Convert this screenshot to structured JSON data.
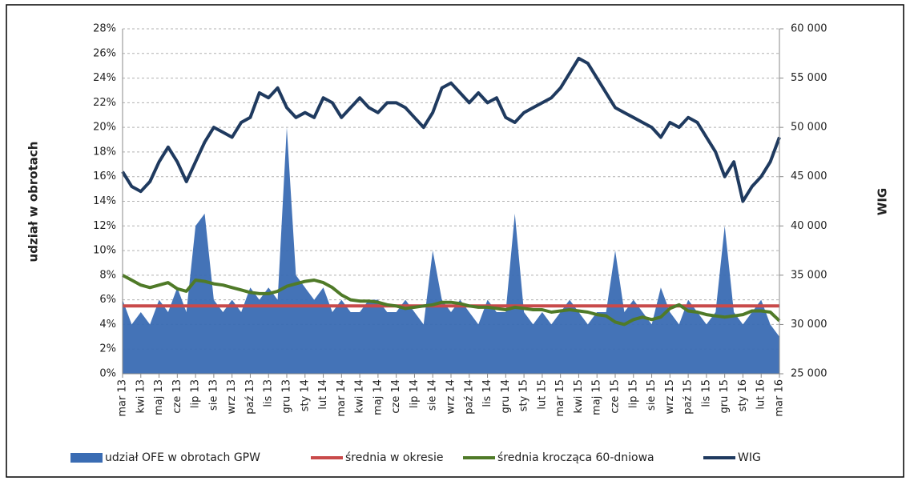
{
  "chart_data": {
    "type": "line",
    "ylabel": "udział w obrotach",
    "y2label": "WIG",
    "categories": [
      "mar 13",
      null,
      "kwi 13",
      null,
      "maj 13",
      null,
      "cze 13",
      null,
      "lip 13",
      null,
      "sie 13",
      null,
      "wrz 13",
      null,
      "paź 13",
      null,
      "lis 13",
      null,
      "gru 13",
      null,
      "sty 14",
      null,
      "lut 14",
      null,
      "mar 14",
      null,
      "kwi 14",
      null,
      "maj 14",
      null,
      "cze 14",
      null,
      "lip 14",
      null,
      "sie 14",
      null,
      "wrz 14",
      null,
      "paź 14",
      null,
      "lis 14",
      null,
      "gru 14",
      null,
      "sty 15",
      null,
      "lut 15",
      null,
      "mar 15",
      null,
      "kwi 15",
      null,
      "maj 15",
      null,
      "cze 15",
      null,
      "lip 15",
      null,
      "sie 15",
      null,
      "wrz 15",
      null,
      "paź 15",
      null,
      "lis 15",
      null,
      "gru 15",
      null,
      "sty 16",
      null,
      "lut 16",
      null,
      "mar 16"
    ],
    "series": [
      {
        "name": "udział OFE w obrotach GPW",
        "type": "area",
        "color": "#3a6cb3",
        "values": [
          6,
          4,
          5,
          4,
          6,
          5,
          7,
          5,
          12,
          13,
          6,
          5,
          6,
          5,
          7,
          6,
          7,
          6,
          20,
          8,
          7,
          6,
          7,
          5,
          6,
          5,
          5,
          6,
          6,
          5,
          5,
          6,
          5,
          4,
          10,
          6,
          5,
          6,
          5,
          4,
          6,
          5,
          5,
          13,
          5,
          4,
          5,
          4,
          5,
          6,
          5,
          4,
          5,
          5,
          10,
          5,
          6,
          5,
          4,
          7,
          5,
          4,
          6,
          5,
          4,
          5,
          12,
          5,
          4,
          5,
          6,
          4,
          3
        ]
      },
      {
        "name": "średnia w okresie",
        "type": "line",
        "color": "#c94a4a",
        "values": [
          5.5,
          5.5,
          5.5,
          5.5,
          5.5,
          5.5,
          5.5,
          5.5,
          5.5,
          5.5,
          5.5,
          5.5,
          5.5,
          5.5,
          5.5,
          5.5,
          5.5,
          5.5,
          5.5,
          5.5,
          5.5,
          5.5,
          5.5,
          5.5,
          5.5,
          5.5,
          5.5,
          5.5,
          5.5,
          5.5,
          5.5,
          5.5,
          5.5,
          5.5,
          5.5,
          5.5,
          5.5,
          5.5,
          5.5,
          5.5,
          5.5,
          5.5,
          5.5,
          5.5,
          5.5,
          5.5,
          5.5,
          5.5,
          5.5,
          5.5,
          5.5,
          5.5,
          5.5,
          5.5,
          5.5,
          5.5,
          5.5,
          5.5,
          5.5,
          5.5,
          5.5,
          5.5,
          5.5,
          5.5,
          5.5,
          5.5,
          5.5,
          5.5,
          5.5,
          5.5,
          5.5,
          5.5,
          5.5
        ]
      },
      {
        "name": "średnia krocząca 60-dniowa",
        "type": "line",
        "color": "#4f7a28",
        "values": [
          8,
          7.6,
          7.2,
          7.0,
          7.2,
          7.4,
          6.9,
          6.7,
          7.6,
          7.5,
          7.3,
          7.2,
          7.0,
          6.8,
          6.6,
          6.5,
          6.5,
          6.7,
          7.1,
          7.3,
          7.5,
          7.6,
          7.4,
          7.0,
          6.4,
          6.0,
          5.9,
          5.9,
          5.8,
          5.6,
          5.5,
          5.3,
          5.4,
          5.5,
          5.6,
          5.8,
          5.8,
          5.7,
          5.5,
          5.4,
          5.4,
          5.3,
          5.2,
          5.4,
          5.3,
          5.2,
          5.2,
          5.0,
          5.1,
          5.2,
          5.1,
          5.0,
          4.8,
          4.7,
          4.2,
          4.0,
          4.4,
          4.6,
          4.4,
          4.6,
          5.3,
          5.6,
          5.1,
          5.0,
          4.8,
          4.7,
          4.6,
          4.7,
          4.8,
          5.1,
          5.1,
          5.0,
          4.3
        ]
      },
      {
        "name": "WIG",
        "type": "line",
        "axis": "y2",
        "color": "#1f3a5f",
        "values": [
          45500,
          44000,
          43500,
          44500,
          46500,
          48000,
          46500,
          44500,
          46500,
          48500,
          50000,
          49500,
          49000,
          50500,
          51000,
          53500,
          53000,
          54000,
          52000,
          51000,
          51500,
          51000,
          53000,
          52500,
          51000,
          52000,
          53000,
          52000,
          51500,
          52500,
          52500,
          52000,
          51000,
          50000,
          51500,
          54000,
          54500,
          53500,
          52500,
          53500,
          52500,
          53000,
          51000,
          50500,
          51500,
          52000,
          52500,
          53000,
          54000,
          55500,
          57000,
          56500,
          55000,
          53500,
          52000,
          51500,
          51000,
          50500,
          50000,
          49000,
          50500,
          50000,
          51000,
          50500,
          49000,
          47500,
          45000,
          46500,
          42500,
          44000,
          45000,
          46500,
          49000
        ]
      }
    ],
    "ylim": [
      0,
      28
    ],
    "yticks": [
      {
        "value": 0,
        "label": "0%"
      },
      {
        "value": 2,
        "label": "2%"
      },
      {
        "value": 4,
        "label": "4%"
      },
      {
        "value": 6,
        "label": "6%"
      },
      {
        "value": 8,
        "label": "8%"
      },
      {
        "value": 10,
        "label": "10%"
      },
      {
        "value": 12,
        "label": "12%"
      },
      {
        "value": 14,
        "label": "14%"
      },
      {
        "value": 16,
        "label": "16%"
      },
      {
        "value": 18,
        "label": "18%"
      },
      {
        "value": 20,
        "label": "20%"
      },
      {
        "value": 22,
        "label": "22%"
      },
      {
        "value": 24,
        "label": "24%"
      },
      {
        "value": 26,
        "label": "26%"
      },
      {
        "value": 28,
        "label": "28%"
      }
    ],
    "y2lim": [
      25000,
      60000
    ],
    "y2ticks": [
      {
        "value": 25000,
        "label": "25 000"
      },
      {
        "value": 30000,
        "label": "30 000"
      },
      {
        "value": 35000,
        "label": "35 000"
      },
      {
        "value": 40000,
        "label": "40 000"
      },
      {
        "value": 45000,
        "label": "45 000"
      },
      {
        "value": 50000,
        "label": "50 000"
      },
      {
        "value": 55000,
        "label": "55 000"
      },
      {
        "value": 60000,
        "label": "60 000"
      }
    ],
    "grid": true,
    "legend": "bottom"
  }
}
